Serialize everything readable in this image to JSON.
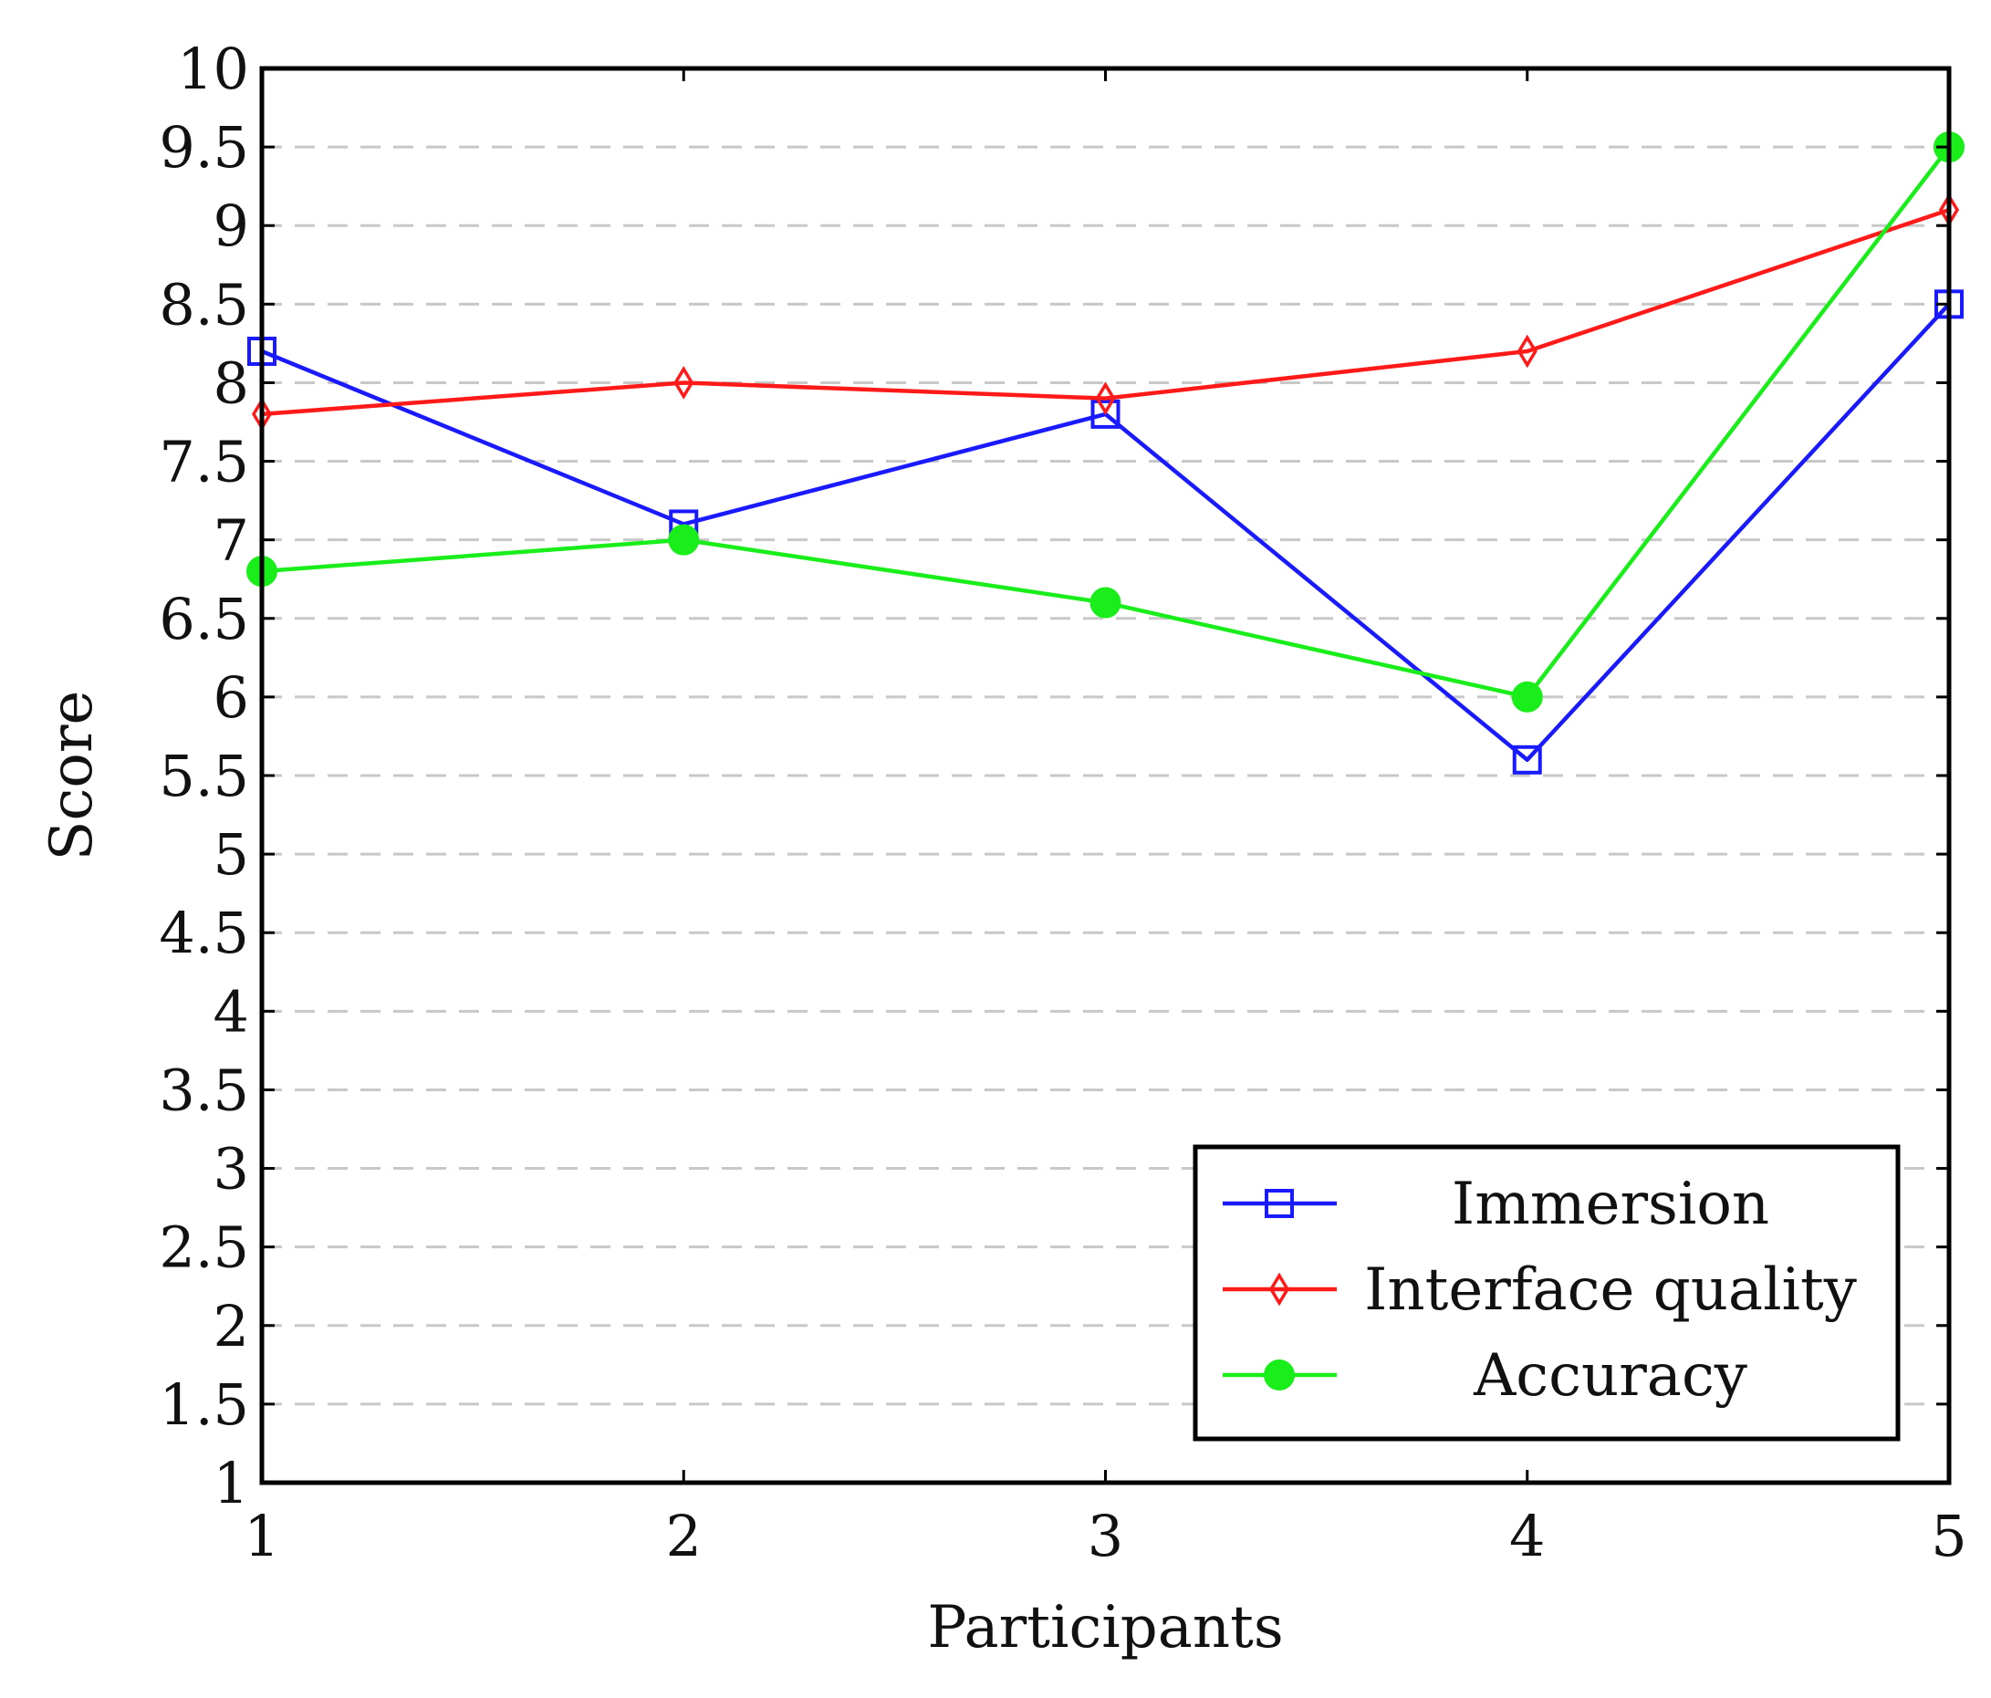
{
  "chart_data": {
    "type": "line",
    "title": "",
    "xlabel": "Participants",
    "ylabel": "Score",
    "x": [
      1,
      2,
      3,
      4,
      5
    ],
    "xticks": [
      "1",
      "2",
      "3",
      "4",
      "5"
    ],
    "xlim": [
      1,
      5
    ],
    "ylim": [
      1,
      10
    ],
    "yticks": [
      "1",
      "1.5",
      "2",
      "2.5",
      "3",
      "3.5",
      "4",
      "4.5",
      "5",
      "5.5",
      "6",
      "6.5",
      "7",
      "7.5",
      "8",
      "8.5",
      "9",
      "9.5",
      "10"
    ],
    "grid": "horizontal-dashed",
    "legend_position": "bottom-right",
    "series": [
      {
        "name": "Immersion",
        "values": [
          8.2,
          7.1,
          7.8,
          5.6,
          8.5
        ],
        "color": "#1a1aff",
        "marker": "square-open"
      },
      {
        "name": "Interface quality",
        "values": [
          7.8,
          8.0,
          7.9,
          8.2,
          9.1
        ],
        "color": "#ff1a1a",
        "marker": "diamond-open"
      },
      {
        "name": "Accuracy",
        "values": [
          6.8,
          7.0,
          6.6,
          6.0,
          9.5
        ],
        "color": "#1aee1a",
        "marker": "circle-filled"
      }
    ]
  }
}
